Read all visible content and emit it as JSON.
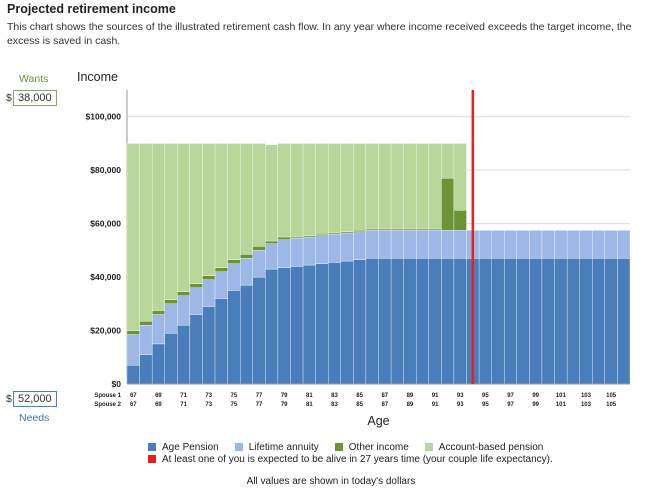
{
  "header": {
    "title": "Projected retirement income",
    "description": "This chart shows the sources of the illustrated retirement cash flow. In any year where income received exceeds the target income, the excess is saved in cash."
  },
  "wants": {
    "label": "Wants",
    "currency": "$",
    "value": "38,000"
  },
  "needs": {
    "label": "Needs",
    "currency": "$",
    "value": "52,000"
  },
  "footer_note": "All values are shown in today's dollars",
  "chart_data": {
    "type": "bar",
    "stacked": true,
    "title": "Income",
    "xlabel": "Age",
    "ylabel": "",
    "ylim": [
      0,
      110000
    ],
    "y_ticks": [
      "$0",
      "$20,000",
      "$40,000",
      "$60,000",
      "$80,000",
      "$100,000"
    ],
    "y_tick_values": [
      0,
      20000,
      40000,
      60000,
      80000,
      100000
    ],
    "grid": true,
    "legend_position": "bottom",
    "x_rows": [
      {
        "label": "Spouse 1",
        "ticks": [
          "67",
          "69",
          "71",
          "73",
          "75",
          "77",
          "79",
          "81",
          "83",
          "85",
          "87",
          "89",
          "91",
          "93",
          "95",
          "97",
          "99",
          "101",
          "103",
          "105"
        ]
      },
      {
        "label": "Spouse 2",
        "ticks": [
          "67",
          "69",
          "71",
          "73",
          "75",
          "77",
          "79",
          "81",
          "83",
          "85",
          "87",
          "89",
          "91",
          "93",
          "95",
          "97",
          "99",
          "101",
          "103",
          "105"
        ]
      }
    ],
    "categories": [
      "67",
      "68",
      "69",
      "70",
      "71",
      "72",
      "73",
      "74",
      "75",
      "76",
      "77",
      "78",
      "79",
      "80",
      "81",
      "82",
      "83",
      "84",
      "85",
      "86",
      "87",
      "88",
      "89",
      "90",
      "91",
      "92",
      "93",
      "94",
      "95",
      "96",
      "97",
      "98",
      "99",
      "100",
      "101",
      "102",
      "103",
      "104",
      "105",
      "106"
    ],
    "series": [
      {
        "name": "Age Pension",
        "color": "#4a7ebb",
        "values": [
          7000,
          11000,
          15000,
          19000,
          22000,
          26000,
          29000,
          32000,
          35000,
          37000,
          40000,
          43000,
          43500,
          44000,
          44500,
          45000,
          45500,
          46000,
          46500,
          47000,
          47000,
          47000,
          47000,
          47000,
          47000,
          47000,
          47000,
          47000,
          47000,
          47000,
          47000,
          47000,
          47000,
          47000,
          47000,
          47000,
          47000,
          47000,
          47000,
          47000
        ]
      },
      {
        "name": "Lifetime annuity",
        "color": "#9db8e6",
        "values": [
          11500,
          11000,
          11000,
          11000,
          11000,
          10000,
          10000,
          10000,
          10000,
          10000,
          10000,
          9500,
          10500,
          10500,
          10500,
          10500,
          10500,
          10500,
          10500,
          10500,
          10500,
          10500,
          10500,
          10500,
          10500,
          10500,
          10500,
          10500,
          10500,
          10500,
          10500,
          10500,
          10500,
          10500,
          10500,
          10500,
          10500,
          10500,
          10500,
          10500
        ]
      },
      {
        "name": "Other income",
        "color": "#6a9436",
        "values": [
          1500,
          1500,
          1500,
          1500,
          1500,
          1500,
          1500,
          1500,
          1500,
          1500,
          1500,
          1000,
          1000,
          500,
          500,
          500,
          500,
          500,
          500,
          500,
          500,
          500,
          500,
          500,
          500,
          19500,
          7500,
          0,
          0,
          0,
          0,
          0,
          0,
          0,
          0,
          0,
          0,
          0,
          0,
          0
        ]
      },
      {
        "name": "Account-based pension",
        "color": "#b7d699",
        "values": [
          70000,
          66500,
          62500,
          58500,
          55500,
          52500,
          49500,
          46500,
          43500,
          41500,
          38500,
          36000,
          35000,
          35000,
          34500,
          34000,
          33500,
          33000,
          32500,
          32000,
          32000,
          32000,
          32000,
          32000,
          32000,
          13000,
          25000,
          0,
          0,
          0,
          0,
          0,
          0,
          0,
          0,
          0,
          0,
          0,
          0,
          0
        ]
      }
    ],
    "marker": {
      "label": "At least one of you is expected to be alive in 27 years time (your couple life expectancy).",
      "color": "#e8201e",
      "x_value": 94
    }
  }
}
